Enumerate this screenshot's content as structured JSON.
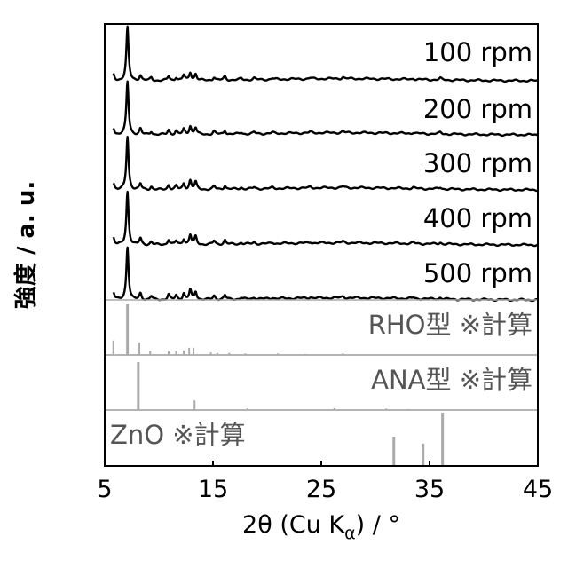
{
  "chart_data": {
    "type": "line",
    "xlabel_main": "2θ (Cu K",
    "xlabel_sub": "α",
    "xlabel_tail": ") / °",
    "ylabel": "強度 / a. u.",
    "xlim": [
      5,
      45
    ],
    "xticks": [
      5,
      15,
      25,
      35,
      45
    ],
    "tick_labels": [
      "5",
      "15",
      "25",
      "35",
      "45"
    ],
    "grid": false,
    "panels": [
      {
        "label": "100 rpm",
        "kind": "measured",
        "peaks": [
          [
            5.8,
            0.12
          ],
          [
            7.1,
            1.0
          ],
          [
            8.3,
            0.1
          ],
          [
            9.3,
            0.06
          ],
          [
            10.9,
            0.08
          ],
          [
            11.6,
            0.06
          ],
          [
            12.3,
            0.1
          ],
          [
            12.9,
            0.15
          ],
          [
            13.4,
            0.12
          ],
          [
            15.1,
            0.06
          ],
          [
            16.1,
            0.07
          ],
          [
            17.6,
            0.03
          ],
          [
            18.8,
            0.03
          ],
          [
            20.5,
            0.02
          ],
          [
            24.0,
            0.02
          ],
          [
            27.0,
            0.03
          ],
          [
            33.5,
            0.02
          ],
          [
            36.0,
            0.03
          ]
        ]
      },
      {
        "label": "200 rpm",
        "kind": "measured",
        "peaks": [
          [
            5.8,
            0.13
          ],
          [
            7.1,
            1.0
          ],
          [
            8.3,
            0.11
          ],
          [
            9.3,
            0.06
          ],
          [
            10.9,
            0.09
          ],
          [
            11.6,
            0.07
          ],
          [
            12.3,
            0.1
          ],
          [
            12.9,
            0.16
          ],
          [
            13.4,
            0.13
          ],
          [
            15.1,
            0.06
          ],
          [
            16.1,
            0.07
          ],
          [
            17.6,
            0.03
          ],
          [
            18.8,
            0.03
          ],
          [
            20.5,
            0.02
          ],
          [
            24.0,
            0.02
          ],
          [
            27.0,
            0.03
          ],
          [
            33.5,
            0.02
          ],
          [
            36.0,
            0.03
          ]
        ]
      },
      {
        "label": "300 rpm",
        "kind": "measured",
        "peaks": [
          [
            5.8,
            0.13
          ],
          [
            7.1,
            1.0
          ],
          [
            8.3,
            0.11
          ],
          [
            9.3,
            0.06
          ],
          [
            10.9,
            0.09
          ],
          [
            11.6,
            0.07
          ],
          [
            12.3,
            0.11
          ],
          [
            12.9,
            0.17
          ],
          [
            13.4,
            0.14
          ],
          [
            15.1,
            0.06
          ],
          [
            16.1,
            0.07
          ],
          [
            17.6,
            0.03
          ],
          [
            18.8,
            0.03
          ],
          [
            20.5,
            0.02
          ],
          [
            24.0,
            0.02
          ],
          [
            27.0,
            0.03
          ],
          [
            33.5,
            0.02
          ],
          [
            36.0,
            0.03
          ]
        ]
      },
      {
        "label": "400 rpm",
        "kind": "measured",
        "peaks": [
          [
            5.8,
            0.14
          ],
          [
            7.1,
            1.0
          ],
          [
            8.3,
            0.12
          ],
          [
            9.3,
            0.06
          ],
          [
            10.9,
            0.1
          ],
          [
            11.6,
            0.07
          ],
          [
            12.3,
            0.11
          ],
          [
            12.9,
            0.18
          ],
          [
            13.4,
            0.15
          ],
          [
            15.1,
            0.07
          ],
          [
            16.1,
            0.08
          ],
          [
            17.6,
            0.03
          ],
          [
            18.8,
            0.03
          ],
          [
            20.5,
            0.02
          ],
          [
            24.0,
            0.02
          ],
          [
            27.0,
            0.03
          ],
          [
            33.5,
            0.02
          ],
          [
            36.0,
            0.03
          ]
        ]
      },
      {
        "label": "500 rpm",
        "kind": "measured",
        "peaks": [
          [
            5.8,
            0.14
          ],
          [
            7.1,
            1.0
          ],
          [
            8.3,
            0.12
          ],
          [
            9.3,
            0.07
          ],
          [
            10.9,
            0.1
          ],
          [
            11.6,
            0.08
          ],
          [
            12.3,
            0.12
          ],
          [
            12.9,
            0.18
          ],
          [
            13.4,
            0.15
          ],
          [
            15.1,
            0.07
          ],
          [
            16.1,
            0.08
          ],
          [
            17.6,
            0.03
          ],
          [
            18.8,
            0.03
          ],
          [
            20.5,
            0.02
          ],
          [
            24.0,
            0.02
          ],
          [
            27.0,
            0.03
          ],
          [
            33.5,
            0.02
          ],
          [
            36.0,
            0.03
          ]
        ]
      },
      {
        "label": "RHO型 ※計算",
        "kind": "calculated",
        "peaks": [
          [
            5.8,
            0.28
          ],
          [
            7.1,
            1.0
          ],
          [
            8.2,
            0.24
          ],
          [
            9.2,
            0.08
          ],
          [
            10.9,
            0.07
          ],
          [
            11.6,
            0.07
          ],
          [
            12.3,
            0.09
          ],
          [
            12.8,
            0.14
          ],
          [
            13.2,
            0.14
          ],
          [
            14.8,
            0.05
          ],
          [
            15.4,
            0.04
          ],
          [
            16.5,
            0.04
          ],
          [
            18.0,
            0.03
          ],
          [
            21.0,
            0.03
          ],
          [
            23.5,
            0.02
          ],
          [
            27.0,
            0.03
          ]
        ]
      },
      {
        "label": "ANA型 ※計算",
        "kind": "calculated",
        "peaks": [
          [
            8.1,
            1.0
          ],
          [
            13.3,
            0.2
          ],
          [
            18.2,
            0.04
          ],
          [
            26.2,
            0.04
          ],
          [
            31.0,
            0.03
          ],
          [
            33.0,
            0.02
          ]
        ]
      },
      {
        "label": "ZnO ※計算",
        "kind": "calculated",
        "peaks": [
          [
            31.7,
            0.55
          ],
          [
            34.4,
            0.42
          ],
          [
            36.2,
            1.0
          ]
        ]
      }
    ]
  }
}
